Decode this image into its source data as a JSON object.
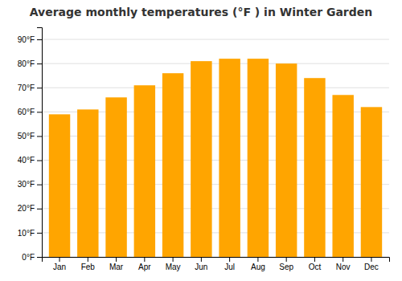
{
  "chart_data": {
    "type": "bar",
    "title": "Average monthly temperatures (°F ) in Winter Garden",
    "categories": [
      "Jan",
      "Feb",
      "Mar",
      "Apr",
      "May",
      "Jun",
      "Jul",
      "Aug",
      "Sep",
      "Oct",
      "Nov",
      "Dec"
    ],
    "values": [
      59,
      61,
      66,
      71,
      76,
      81,
      82,
      82,
      80,
      74,
      67,
      62
    ],
    "color": "#FFA500",
    "ylim": [
      0,
      95
    ],
    "yticks": [
      {
        "value": 0,
        "label": "0°F"
      },
      {
        "value": 10,
        "label": "10°F"
      },
      {
        "value": 20,
        "label": "20°F"
      },
      {
        "value": 30,
        "label": "30°F"
      },
      {
        "value": 40,
        "label": "40°F"
      },
      {
        "value": 50,
        "label": "50°F"
      },
      {
        "value": 60,
        "label": "60°F"
      },
      {
        "value": 70,
        "label": "70°F"
      },
      {
        "value": 80,
        "label": "80°F"
      },
      {
        "value": 90,
        "label": "90°F"
      }
    ],
    "grid": true
  }
}
